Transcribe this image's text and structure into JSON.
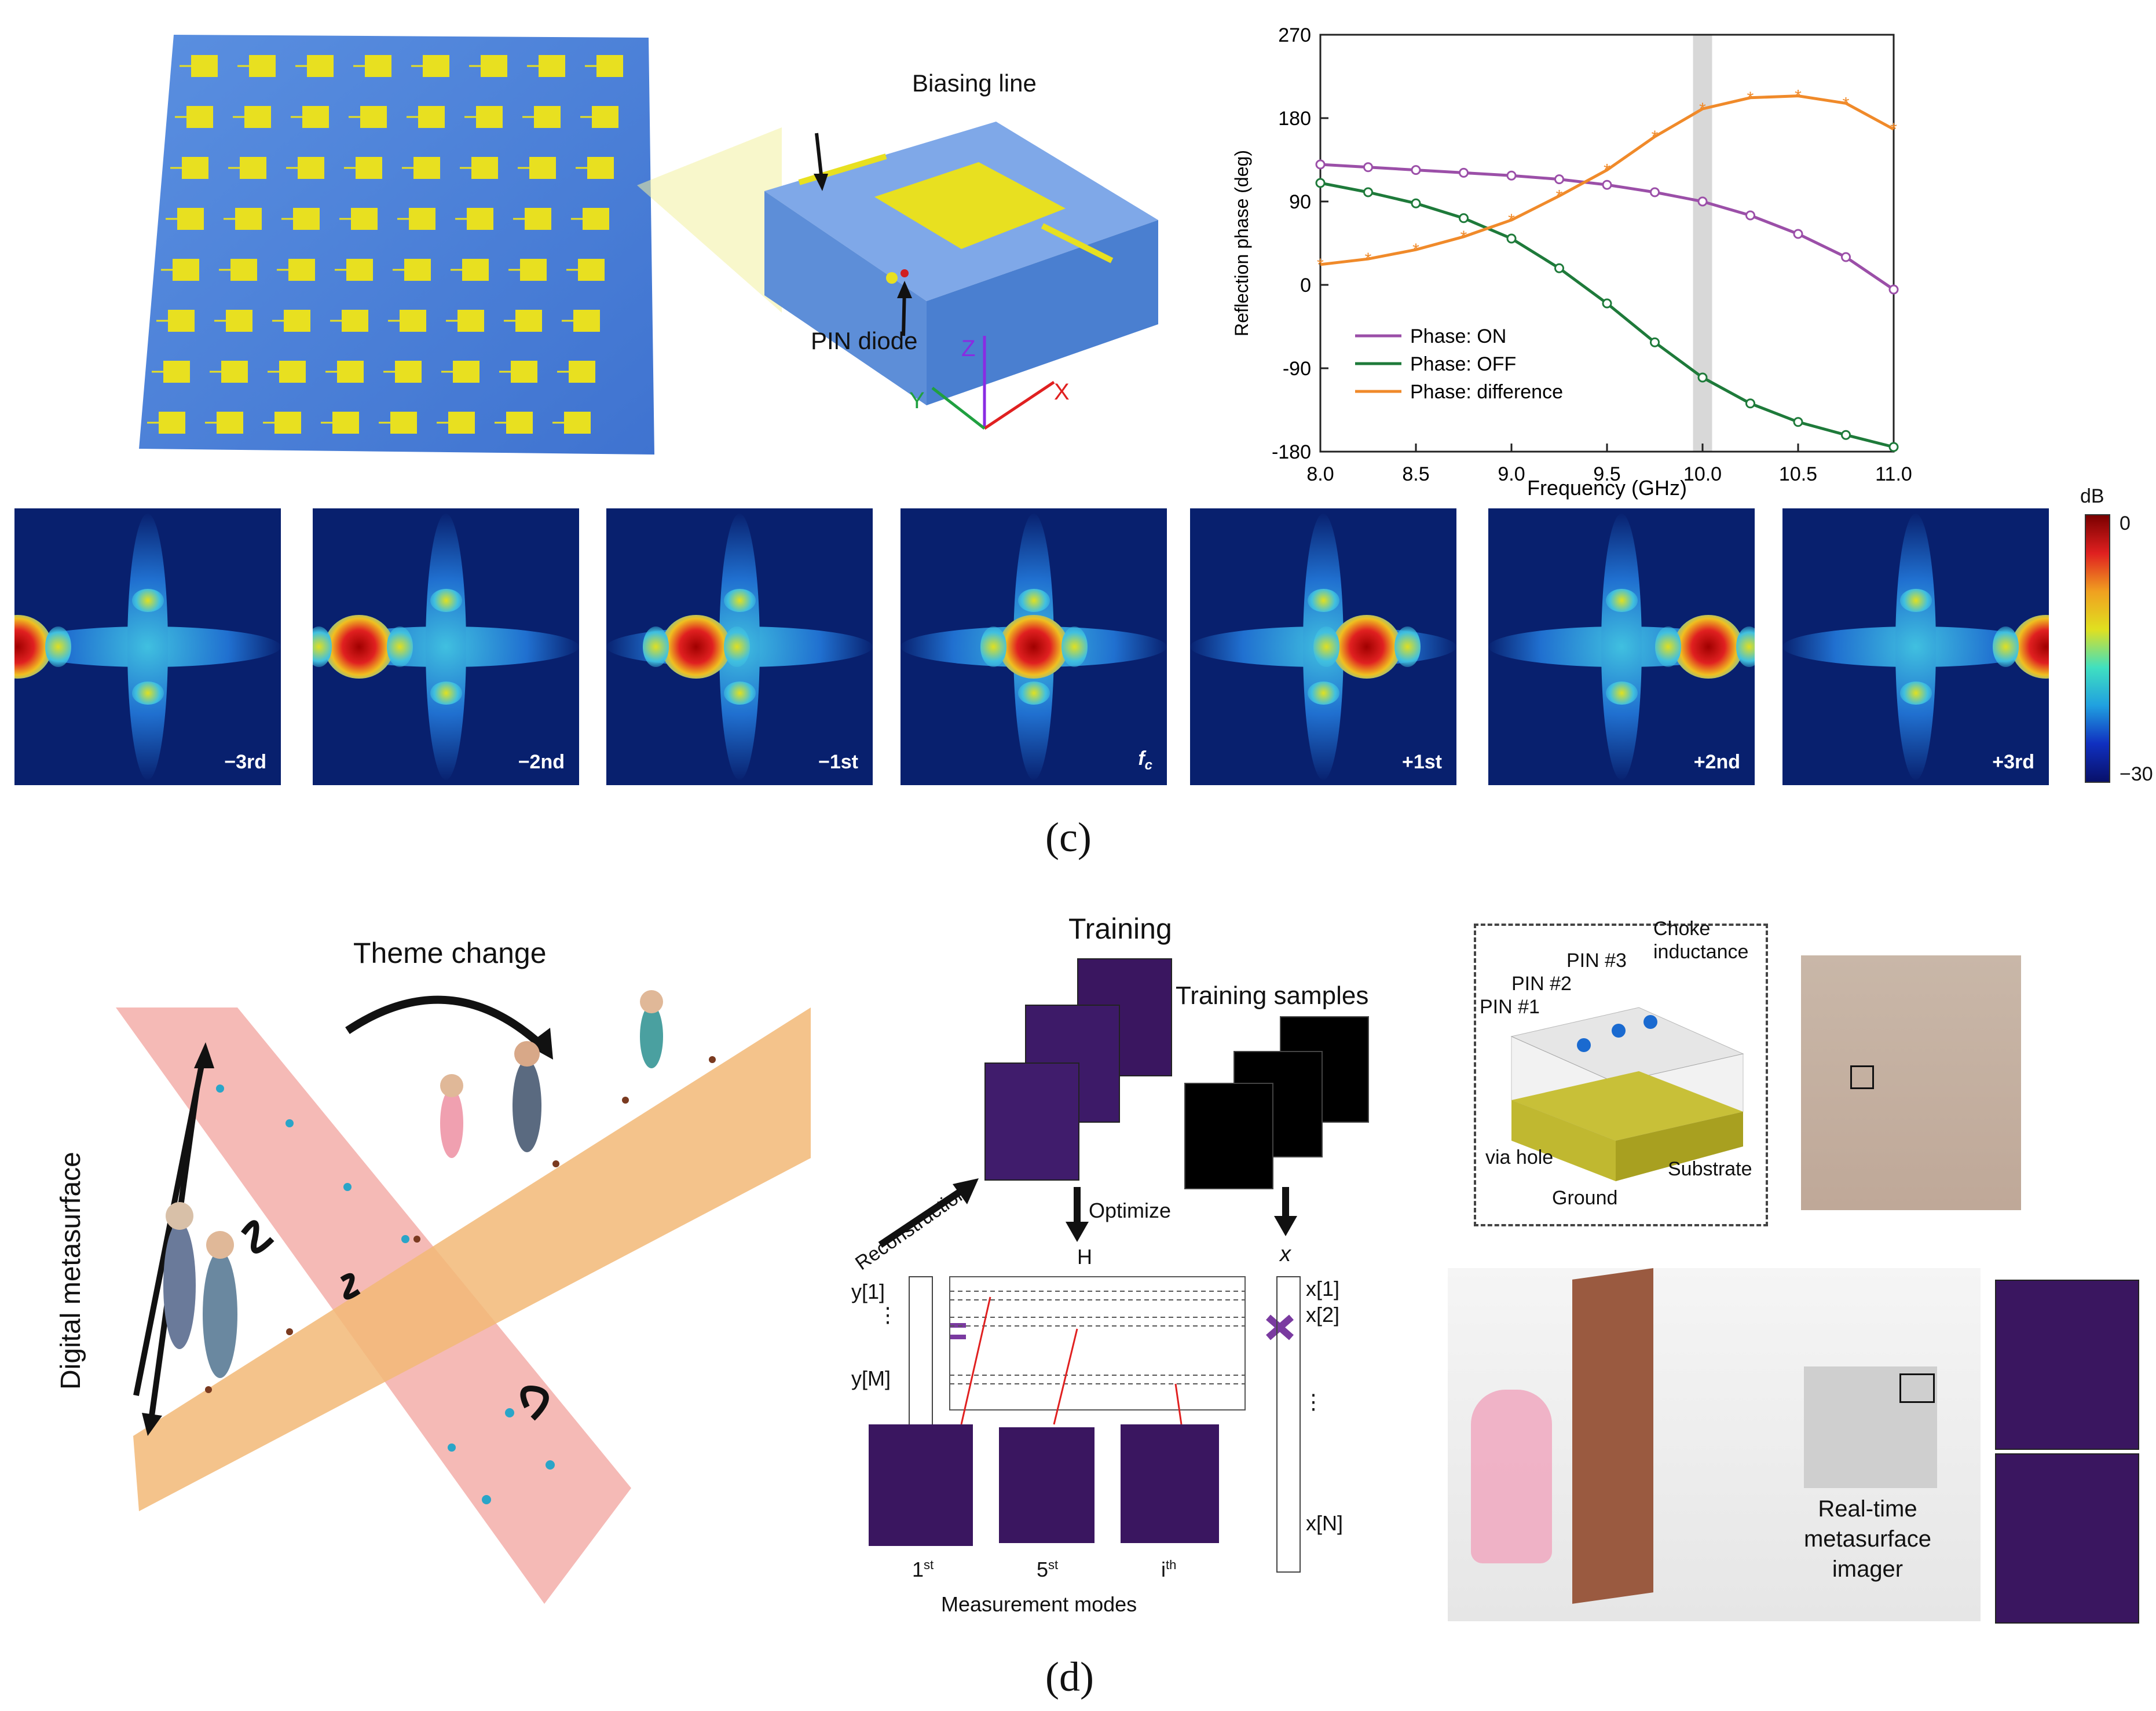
{
  "top": {
    "labels": {
      "biasing_line": "Biasing line",
      "pin_diode": "PIN diode",
      "axis_z": "Z",
      "axis_y": "Y",
      "axis_x": "X"
    },
    "chart_data": {
      "type": "line",
      "xlabel": "Frequency (GHz)",
      "ylabel": "Reflection phase (deg)",
      "xlim": [
        8.0,
        11.0
      ],
      "ylim": [
        -180,
        270
      ],
      "xticks": [
        "8.0",
        "8.5",
        "9.0",
        "9.5",
        "10.0",
        "10.5",
        "11.0"
      ],
      "yticks": [
        "270",
        "180",
        "90",
        "0",
        "-90",
        "-180"
      ],
      "highlight_band": [
        9.95,
        10.05
      ],
      "x": [
        8.0,
        8.25,
        8.5,
        8.75,
        9.0,
        9.25,
        9.5,
        9.75,
        10.0,
        10.25,
        10.5,
        10.75,
        11.0
      ],
      "series": [
        {
          "name": "Phase: ON",
          "color": "#9b4fa8",
          "values": [
            130,
            127,
            124,
            121,
            118,
            114,
            108,
            100,
            90,
            75,
            55,
            30,
            -5
          ]
        },
        {
          "name": "Phase: OFF",
          "color": "#1e7a3a",
          "values": [
            110,
            100,
            88,
            72,
            50,
            18,
            -20,
            -62,
            -100,
            -128,
            -148,
            -162,
            -175
          ]
        },
        {
          "name": "Phase: difference",
          "color": "#f08a2a",
          "values": [
            22,
            28,
            38,
            52,
            70,
            96,
            124,
            160,
            190,
            202,
            204,
            196,
            168
          ]
        }
      ]
    }
  },
  "colorbar": {
    "unit": "dB",
    "max": "0",
    "min": "−30"
  },
  "fields": [
    {
      "tag": "−3rd"
    },
    {
      "tag": "−2nd"
    },
    {
      "tag": "−1st"
    },
    {
      "tag": "f",
      "sub": "c"
    },
    {
      "tag": "+1st"
    },
    {
      "tag": "+2nd"
    },
    {
      "tag": "+3rd"
    }
  ],
  "caption_c": "(c)",
  "caption_d": "(d)",
  "left_panel": {
    "theme_change": "Theme change",
    "digital_metasurface": "Digital metasurface"
  },
  "mid_panel": {
    "training": "Training",
    "training_samples": "Training samples",
    "reconstruction": "Reconstruction",
    "optimize": "Optimize",
    "h": "H",
    "x": "x",
    "y1": "y[1]",
    "yM": "y[M]",
    "x1": "x[1]",
    "x2": "x[2]",
    "xN": "x[N]",
    "dots": "⋮",
    "mode1": "1",
    "mode1_sup": "st",
    "mode5": "5",
    "mode5_sup": "st",
    "modei": "i",
    "modei_sup": "th",
    "measurement_modes": "Measurement modes"
  },
  "right_panel": {
    "choke": "Choke",
    "inductance": "inductance",
    "pin1": "PIN #1",
    "pin2": "PIN #2",
    "pin3": "PIN #3",
    "via_hole": "via hole",
    "ground": "Ground",
    "substrate": "Substrate",
    "imager": [
      "Real-time",
      "metasurface",
      "imager"
    ]
  }
}
